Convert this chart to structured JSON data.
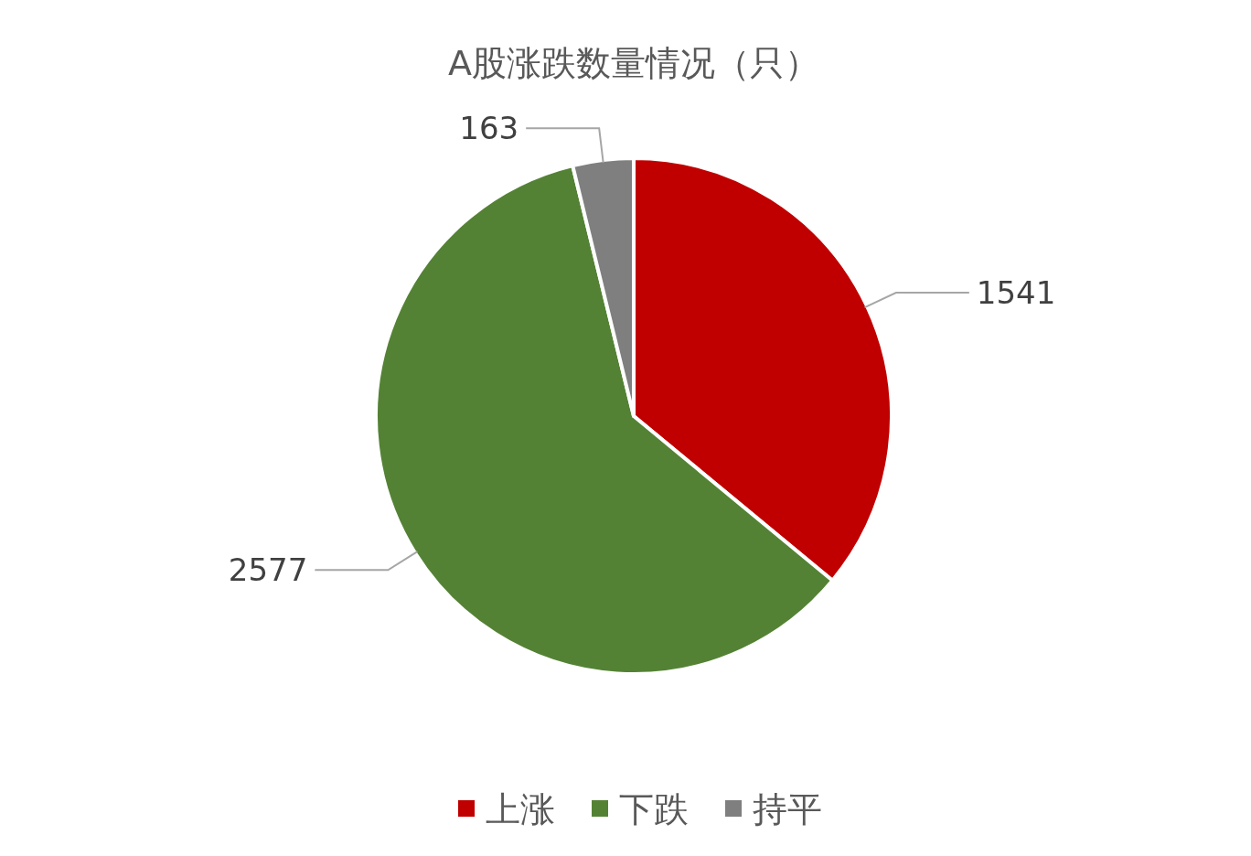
{
  "chart_data": {
    "type": "pie",
    "title": "A股涨跌数量情况（只）",
    "categories": [
      "上涨",
      "下跌",
      "持平"
    ],
    "values": [
      1541,
      2577,
      163
    ],
    "colors": [
      "#c00000",
      "#548235",
      "#7f7f7f"
    ],
    "data_labels": true,
    "legend": "bottom"
  }
}
